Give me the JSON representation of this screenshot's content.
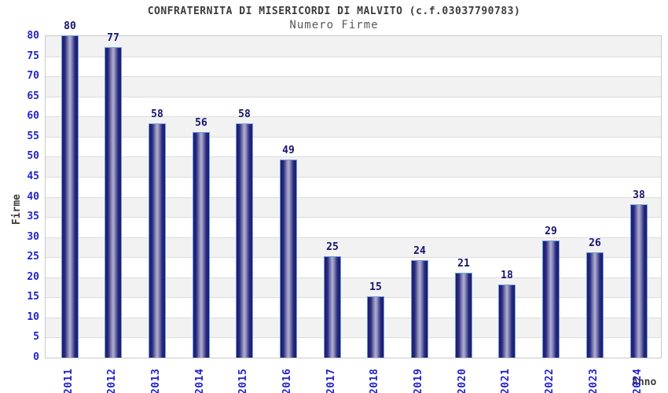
{
  "header": {
    "title": "CONFRATERNITA DI MISERICORDI DI MALVITO (c.f.03037790783)",
    "subtitle": "Numero Firme"
  },
  "chart_data": {
    "type": "bar",
    "title": "CONFRATERNITA DI MISERICORDI DI MALVITO (c.f.03037790783)",
    "subtitle": "Numero Firme",
    "xlabel": "Anno",
    "ylabel": "Firme",
    "categories": [
      "2011",
      "2012",
      "2013",
      "2014",
      "2015",
      "2016",
      "2017",
      "2018",
      "2019",
      "2020",
      "2021",
      "2022",
      "2023",
      "2024"
    ],
    "values": [
      80,
      77,
      58,
      56,
      58,
      49,
      25,
      15,
      24,
      21,
      18,
      29,
      26,
      38
    ],
    "ylim": [
      0,
      80
    ],
    "ytick_step": 5,
    "legend_position": "none",
    "grid": "horizontal-bands-alternating",
    "bar_labels_shown": true,
    "colors": {
      "bar_dark": "#1c1c6e",
      "bar_highlight": "#b0b0d2",
      "bar_border": "#6a9ce0",
      "tick_label": "#2323cc",
      "value_label": "#14146e",
      "band_gray": "#f2f2f2",
      "band_white": "#ffffff",
      "gridline": "#dcdcdc",
      "plot_border": "#c9c9c9",
      "title_color": "#3c3c3c",
      "subtitle_color": "#5a5a5a"
    }
  }
}
